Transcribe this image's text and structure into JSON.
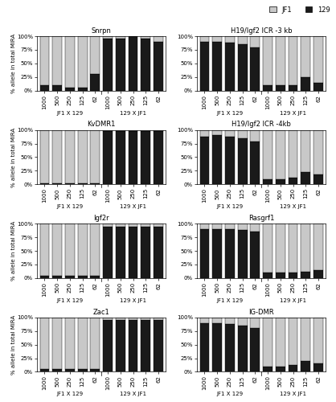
{
  "chart_data": [
    {
      "type": "bar",
      "title": "Snrpn",
      "stacked": true,
      "ylabel": "% allele in total MIRA",
      "categories": [
        "1000",
        "500",
        "250",
        "125",
        "62",
        "1000",
        "500",
        "250",
        "125",
        "62"
      ],
      "group_labels": [
        "JF1 X 129",
        "129 X JF1"
      ],
      "series": [
        {
          "name": "129",
          "color": "#1a1a1a",
          "values": [
            10,
            10,
            5,
            5,
            30,
            95,
            95,
            100,
            95,
            90
          ]
        },
        {
          "name": "JF1",
          "color": "#c8c8c8",
          "values": [
            90,
            90,
            95,
            95,
            70,
            5,
            5,
            0,
            5,
            10
          ]
        }
      ],
      "ylim": [
        0,
        100
      ],
      "yticks": [
        {
          "value": 0,
          "label": "0%"
        },
        {
          "value": 25,
          "label": "25%"
        },
        {
          "value": 50,
          "label": "50%"
        },
        {
          "value": 75,
          "label": "75%"
        },
        {
          "value": 100,
          "label": "100%"
        }
      ]
    },
    {
      "type": "bar",
      "title": "H19/Igf2 ICR -3 kb",
      "stacked": true,
      "legend": "upper right",
      "categories": [
        "1000",
        "500",
        "250",
        "125",
        "62",
        "1000",
        "500",
        "250",
        "125",
        "62"
      ],
      "group_labels": [
        "JF1 X 129",
        "129 X JF1"
      ],
      "series": [
        {
          "name": "129",
          "color": "#1a1a1a",
          "values": [
            90,
            90,
            88,
            85,
            80,
            10,
            10,
            10,
            25,
            15
          ]
        },
        {
          "name": "JF1",
          "color": "#c8c8c8",
          "values": [
            10,
            10,
            12,
            15,
            20,
            90,
            90,
            90,
            75,
            85
          ]
        }
      ],
      "ylim": [
        0,
        100
      ],
      "yticks": [
        {
          "value": 0,
          "label": "0%"
        },
        {
          "value": 25,
          "label": "25%"
        },
        {
          "value": 50,
          "label": "50%"
        },
        {
          "value": 75,
          "label": "75%"
        },
        {
          "value": 100,
          "label": "100%"
        }
      ]
    },
    {
      "type": "bar",
      "title": "KvDMR1",
      "stacked": true,
      "ylabel": "% allele in total MIRA",
      "categories": [
        "1000",
        "500",
        "250",
        "125",
        "62",
        "1000",
        "500",
        "250",
        "125",
        "62"
      ],
      "group_labels": [
        "JF1 X 129",
        "129 X JF1"
      ],
      "series": [
        {
          "name": "129",
          "color": "#1a1a1a",
          "values": [
            2,
            2,
            2,
            2,
            2,
            98,
            98,
            98,
            98,
            98
          ]
        },
        {
          "name": "JF1",
          "color": "#c8c8c8",
          "values": [
            98,
            98,
            98,
            98,
            98,
            2,
            2,
            2,
            2,
            2
          ]
        }
      ],
      "ylim": [
        0,
        100
      ],
      "yticks": [
        {
          "value": 0,
          "label": "0%"
        },
        {
          "value": 25,
          "label": "25%"
        },
        {
          "value": 50,
          "label": "50%"
        },
        {
          "value": 75,
          "label": "75%"
        },
        {
          "value": 100,
          "label": "100%"
        }
      ]
    },
    {
      "type": "bar",
      "title": "H19/Igf2 ICR -4kb",
      "stacked": true,
      "categories": [
        "1000",
        "500",
        "250",
        "125",
        "62",
        "1000",
        "500",
        "250",
        "125",
        "62"
      ],
      "group_labels": [
        "JF1 X 129",
        "129 X JF1"
      ],
      "series": [
        {
          "name": "129",
          "color": "#1a1a1a",
          "values": [
            88,
            90,
            88,
            85,
            78,
            10,
            10,
            12,
            22,
            18
          ]
        },
        {
          "name": "JF1",
          "color": "#c8c8c8",
          "values": [
            12,
            10,
            12,
            15,
            22,
            90,
            90,
            88,
            78,
            82
          ]
        }
      ],
      "ylim": [
        0,
        100
      ],
      "yticks": [
        {
          "value": 0,
          "label": "0%"
        },
        {
          "value": 25,
          "label": "25%"
        },
        {
          "value": 50,
          "label": "50%"
        },
        {
          "value": 75,
          "label": "75%"
        },
        {
          "value": 100,
          "label": "100%"
        }
      ]
    },
    {
      "type": "bar",
      "title": "Igf2r",
      "stacked": true,
      "ylabel": "% allele in total MIRA",
      "categories": [
        "1000",
        "500",
        "250",
        "125",
        "62",
        "1000",
        "500",
        "250",
        "125",
        "62"
      ],
      "group_labels": [
        "JF1 X 129",
        "129 X JF1"
      ],
      "series": [
        {
          "name": "129",
          "color": "#1a1a1a",
          "values": [
            5,
            5,
            5,
            5,
            5,
            95,
            95,
            95,
            95,
            95
          ]
        },
        {
          "name": "JF1",
          "color": "#c8c8c8",
          "values": [
            95,
            95,
            95,
            95,
            95,
            5,
            5,
            5,
            5,
            5
          ]
        }
      ],
      "ylim": [
        0,
        100
      ],
      "yticks": [
        {
          "value": 0,
          "label": "0%"
        },
        {
          "value": 25,
          "label": "25%"
        },
        {
          "value": 50,
          "label": "50%"
        },
        {
          "value": 75,
          "label": "75%"
        },
        {
          "value": 100,
          "label": "100%"
        }
      ]
    },
    {
      "type": "bar",
      "title": "Rasgrf1",
      "stacked": true,
      "categories": [
        "1000",
        "500",
        "250",
        "125",
        "62",
        "1000",
        "500",
        "250",
        "125",
        "62"
      ],
      "group_labels": [
        "JF1 X 129",
        "129 X JF1"
      ],
      "series": [
        {
          "name": "129",
          "color": "#1a1a1a",
          "values": [
            90,
            90,
            90,
            88,
            85,
            10,
            10,
            10,
            12,
            15
          ]
        },
        {
          "name": "JF1",
          "color": "#c8c8c8",
          "values": [
            10,
            10,
            10,
            12,
            15,
            90,
            90,
            90,
            88,
            85
          ]
        }
      ],
      "ylim": [
        0,
        100
      ],
      "yticks": [
        {
          "value": 0,
          "label": "0%"
        },
        {
          "value": 25,
          "label": "25%"
        },
        {
          "value": 50,
          "label": "50%"
        },
        {
          "value": 75,
          "label": "75%"
        },
        {
          "value": 100,
          "label": "100%"
        }
      ]
    },
    {
      "type": "bar",
      "title": "Zac1",
      "stacked": true,
      "ylabel": "% allele in total MIRA",
      "categories": [
        "1000",
        "500",
        "250",
        "125",
        "62",
        "1000",
        "500",
        "250",
        "125",
        "62"
      ],
      "group_labels": [
        "JF1 X 129",
        "129 X JF1"
      ],
      "series": [
        {
          "name": "129",
          "color": "#1a1a1a",
          "values": [
            5,
            5,
            5,
            5,
            5,
            95,
            95,
            95,
            95,
            95
          ]
        },
        {
          "name": "JF1",
          "color": "#c8c8c8",
          "values": [
            95,
            95,
            95,
            95,
            95,
            5,
            5,
            5,
            5,
            5
          ]
        }
      ],
      "ylim": [
        0,
        100
      ],
      "yticks": [
        {
          "value": 0,
          "label": "0%"
        },
        {
          "value": 25,
          "label": "25%"
        },
        {
          "value": 50,
          "label": "50%"
        },
        {
          "value": 75,
          "label": "75%"
        },
        {
          "value": 100,
          "label": "100%"
        }
      ]
    },
    {
      "type": "bar",
      "title": "IG-DMR",
      "stacked": true,
      "categories": [
        "1000",
        "500",
        "250",
        "125",
        "62",
        "1000",
        "500",
        "250",
        "125",
        "62"
      ],
      "group_labels": [
        "JF1 X 129",
        "129 X JF1"
      ],
      "series": [
        {
          "name": "129",
          "color": "#1a1a1a",
          "values": [
            90,
            90,
            88,
            85,
            80,
            10,
            10,
            12,
            20,
            15
          ]
        },
        {
          "name": "JF1",
          "color": "#c8c8c8",
          "values": [
            10,
            10,
            12,
            15,
            20,
            90,
            90,
            88,
            80,
            85
          ]
        }
      ],
      "ylim": [
        0,
        100
      ],
      "yticks": [
        {
          "value": 0,
          "label": "0%"
        },
        {
          "value": 25,
          "label": "25%"
        },
        {
          "value": 50,
          "label": "50%"
        },
        {
          "value": 75,
          "label": "75%"
        },
        {
          "value": 100,
          "label": "100%"
        }
      ]
    }
  ]
}
